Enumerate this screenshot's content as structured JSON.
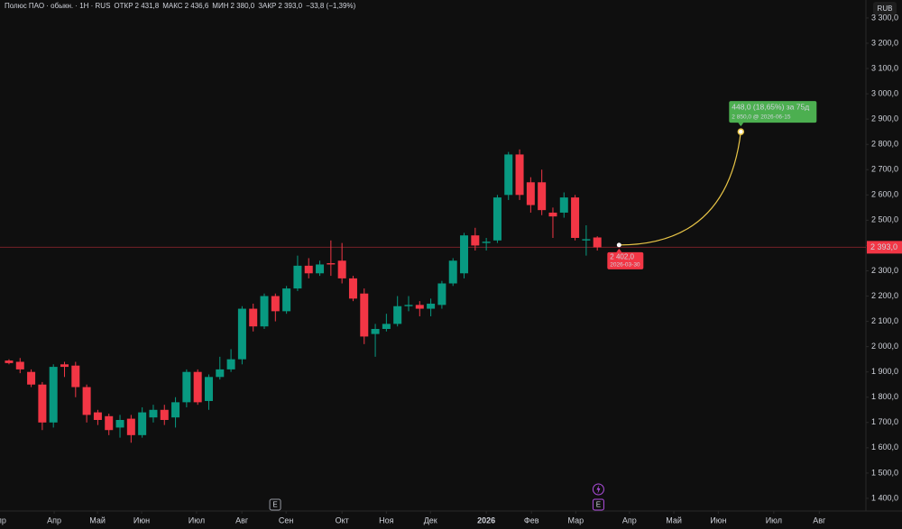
{
  "chart_data": {
    "type": "candlestick",
    "header": {
      "symbol": "Полюс ПАО · обыкн. · 1Н · RUS",
      "fields": [
        {
          "name": "ОТКР",
          "text": "2 431,8"
        },
        {
          "name": "МАКС",
          "text": "2 436,6"
        },
        {
          "name": "МИН",
          "text": "2 380,0"
        },
        {
          "name": "ЗАКР",
          "text": "2 393,0"
        }
      ],
      "change": "−33,8 (−1,39%)"
    },
    "currency": "RUB",
    "up_color": "#089981",
    "down_color": "#f23645",
    "x": [
      0,
      1,
      2,
      3,
      4,
      5,
      6,
      7,
      8,
      9,
      10,
      11,
      12,
      13,
      14,
      15,
      16,
      17,
      18,
      19,
      20,
      21,
      22,
      23,
      24,
      25,
      26,
      27,
      28,
      29,
      30,
      31,
      32,
      33,
      34,
      35,
      36,
      37,
      38,
      39,
      40,
      41,
      42,
      43,
      44,
      45,
      46,
      47,
      48,
      49,
      50,
      51,
      52,
      53
    ],
    "open": [
      1945,
      1940,
      1900,
      1850,
      1700,
      1930,
      1925,
      1840,
      1740,
      1725,
      1680,
      1715,
      1650,
      1720,
      1750,
      1720,
      1780,
      1900,
      1785,
      1880,
      1910,
      1950,
      2150,
      2080,
      2200,
      2140,
      2230,
      2320,
      2290,
      2330,
      2340,
      2270,
      2210,
      2050,
      2070,
      2090,
      2160,
      2165,
      2150,
      2165,
      2250,
      2290,
      2440,
      2410,
      2420,
      2600,
      2760,
      2650,
      2650,
      2530,
      2530,
      2590,
      2420,
      2431.8
    ],
    "high": [
      1950,
      1955,
      1910,
      1860,
      1930,
      1940,
      1940,
      1850,
      1750,
      1735,
      1730,
      1730,
      1760,
      1770,
      1770,
      1800,
      1910,
      1910,
      1890,
      1960,
      1990,
      2160,
      2170,
      2210,
      2210,
      2240,
      2360,
      2350,
      2340,
      2420,
      2410,
      2280,
      2230,
      2090,
      2130,
      2200,
      2200,
      2180,
      2190,
      2260,
      2350,
      2450,
      2470,
      2430,
      2600,
      2770,
      2780,
      2670,
      2700,
      2550,
      2610,
      2600,
      2480,
      2436.6
    ],
    "low": [
      1930,
      1895,
      1840,
      1670,
      1680,
      1880,
      1800,
      1700,
      1690,
      1650,
      1640,
      1620,
      1640,
      1700,
      1690,
      1680,
      1760,
      1770,
      1750,
      1870,
      1900,
      1930,
      2060,
      2070,
      2100,
      2130,
      2220,
      2270,
      2280,
      2280,
      2250,
      2180,
      2010,
      1960,
      2060,
      2080,
      2140,
      2120,
      2120,
      2150,
      2240,
      2270,
      2380,
      2380,
      2410,
      2580,
      2580,
      2530,
      2520,
      2430,
      2510,
      2420,
      2360,
      2380
    ],
    "close": [
      1935,
      1910,
      1850,
      1700,
      1920,
      1920,
      1840,
      1730,
      1710,
      1670,
      1710,
      1650,
      1740,
      1750,
      1710,
      1780,
      1900,
      1780,
      1880,
      1910,
      1950,
      2150,
      2080,
      2200,
      2140,
      2230,
      2320,
      2290,
      2325,
      2325,
      2270,
      2190,
      2040,
      2070,
      2090,
      2160,
      2165,
      2150,
      2170,
      2250,
      2340,
      2440,
      2400,
      2415,
      2590,
      2760,
      2600,
      2560,
      2540,
      2515,
      2590,
      2430,
      2425,
      2393
    ],
    "last_price": {
      "value": 2393,
      "label": "2 393,0"
    },
    "xlim": [
      -0.81,
      77.2
    ],
    "xticks": [
      {
        "value": -0.9,
        "label": "Апр"
      },
      {
        "value": 4.07,
        "label": "Апр"
      },
      {
        "value": 7.97,
        "label": "Май"
      },
      {
        "value": 11.95,
        "label": "Июн"
      },
      {
        "value": 16.9,
        "label": "Июл"
      },
      {
        "value": 20.98,
        "label": "Авг"
      },
      {
        "value": 24.96,
        "label": "Сен"
      },
      {
        "value": 30,
        "label": "Окт"
      },
      {
        "value": 34,
        "label": "Ноя"
      },
      {
        "value": 37.97,
        "label": "Дек"
      },
      {
        "value": 43,
        "label": "2026"
      },
      {
        "value": 47.07,
        "label": "Фев"
      },
      {
        "value": 51.06,
        "label": "Мар"
      },
      {
        "value": 55.9,
        "label": "Апр"
      },
      {
        "value": 59.9,
        "label": "Май"
      },
      {
        "value": 63.9,
        "label": "Июн"
      },
      {
        "value": 68.9,
        "label": "Июл"
      },
      {
        "value": 73,
        "label": "Авг"
      }
    ],
    "ylim": [
      1350,
      3371
    ],
    "yticks": [
      {
        "value": 1400,
        "label": "1 400,0"
      },
      {
        "value": 1500,
        "label": "1 500,0"
      },
      {
        "value": 1600,
        "label": "1 600,0"
      },
      {
        "value": 1700,
        "label": "1 700,0"
      },
      {
        "value": 1800,
        "label": "1 800,0"
      },
      {
        "value": 1900,
        "label": "1 900,0"
      },
      {
        "value": 2000,
        "label": "2 000,0"
      },
      {
        "value": 2100,
        "label": "2 100,0"
      },
      {
        "value": 2200,
        "label": "2 200,0"
      },
      {
        "value": 2300,
        "label": "2 300,0"
      },
      {
        "value": 2400,
        "label": "2 400,0"
      },
      {
        "value": 2500,
        "label": "2 500,0"
      },
      {
        "value": 2600,
        "label": "2 600,0"
      },
      {
        "value": 2700,
        "label": "2 700,0"
      },
      {
        "value": 2800,
        "label": "2 800,0"
      },
      {
        "value": 2900,
        "label": "2 900,0"
      },
      {
        "value": 3000,
        "label": "3 000,0"
      },
      {
        "value": 3100,
        "label": "3 100,0"
      },
      {
        "value": 3200,
        "label": "3 200,0"
      },
      {
        "value": 3300,
        "label": "3 300,0"
      }
    ],
    "forecast": {
      "start": {
        "x": 54.96,
        "value": 2402,
        "label": "2 402,0",
        "date": "2026-03-30"
      },
      "end": {
        "x": 65.93,
        "value": 2850,
        "label": "2 850,0 @ 2026-06-15"
      },
      "change_label": "448,0 (18,65%) за 75д",
      "color": "#e8c547",
      "box_color": "#4caf50"
    },
    "events": [
      {
        "x": 23.98,
        "label": "E"
      },
      {
        "x": 53.1,
        "label": "E"
      }
    ]
  }
}
